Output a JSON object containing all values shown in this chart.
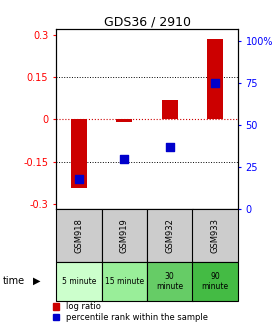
{
  "title": "GDS36 / 2910",
  "samples": [
    "GSM918",
    "GSM919",
    "GSM932",
    "GSM933"
  ],
  "time_labels": [
    "5 minute",
    "15 minute",
    "30\nminute",
    "90\nminute"
  ],
  "time_colors": [
    "#ccffcc",
    "#99ee99",
    "#66cc66",
    "#44bb44"
  ],
  "log_ratios": [
    -0.245,
    -0.01,
    0.07,
    0.285
  ],
  "percentile_ranks": [
    18,
    30,
    37,
    75
  ],
  "left_yticks": [
    -0.3,
    -0.15,
    0,
    0.15,
    0.3
  ],
  "right_yticks": [
    0,
    25,
    50,
    75,
    100
  ],
  "left_yticklabels": [
    "-0.3",
    "-0.15",
    "0",
    "0.15",
    "0.3"
  ],
  "right_yticklabels": [
    "0",
    "25",
    "50",
    "75",
    "100%"
  ],
  "bar_color": "#cc0000",
  "dot_color": "#0000cc",
  "bar_width": 0.35,
  "dot_size": 40,
  "zero_line_color": "#cc0000",
  "dotted_line_color": "#000000",
  "bg_color": "#ffffff",
  "left_ylim": [
    -0.32,
    0.32
  ],
  "right_ylim": [
    0,
    107
  ],
  "legend_log_ratio": "log ratio",
  "legend_percentile": "percentile rank within the sample",
  "time_label": "time",
  "gsm_bg": "#cccccc"
}
